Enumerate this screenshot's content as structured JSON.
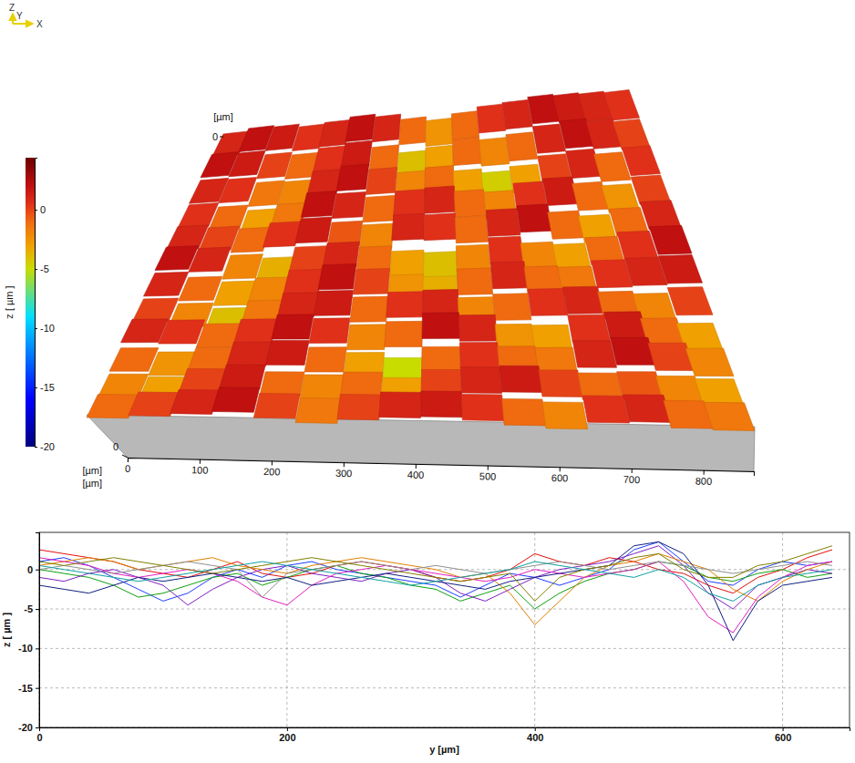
{
  "chart_data": [
    {
      "type": "surface",
      "triad": [
        "Z",
        "Y",
        "X"
      ],
      "x_label": "[µm]",
      "xlim": [
        0,
        870
      ],
      "xticks": [
        0,
        100,
        200,
        300,
        400,
        500,
        600,
        700,
        800
      ],
      "y_label": "[µm]",
      "ylim": [
        0,
        660
      ],
      "yticks": [
        0
      ],
      "z_label": "[µm]",
      "zticks": [
        0
      ],
      "cells": [
        [
          1,
          2,
          1.5,
          0.5,
          1,
          2,
          1,
          -1,
          -2.5,
          -1,
          0.5,
          1,
          2,
          1.5,
          1,
          0.5
        ],
        [
          2,
          1.5,
          0,
          -1,
          0.5,
          1.5,
          -1,
          -4,
          -3,
          -1,
          -2,
          -1,
          1,
          2,
          1,
          0
        ],
        [
          1,
          0.5,
          -1.5,
          -2,
          1,
          2,
          0,
          -2,
          -1,
          -3,
          -4.5,
          -3,
          0,
          1,
          -1,
          0.5
        ],
        [
          0.5,
          -1,
          -3,
          -1.5,
          2,
          1,
          -1,
          0.5,
          1,
          -1,
          -2,
          0.5,
          1.5,
          -1,
          -2.5,
          0
        ],
        [
          1,
          0,
          -1,
          0.5,
          1.5,
          -0.5,
          -2,
          1,
          0.5,
          -1,
          1,
          2,
          -1,
          -3,
          -1,
          1
        ],
        [
          2,
          1,
          -2,
          -3.5,
          0,
          1,
          -1,
          -3,
          -4,
          -2,
          0.5,
          -2,
          -3,
          -1,
          0.5,
          2
        ],
        [
          1,
          -1,
          -3,
          -2,
          0.5,
          2,
          0,
          -2.5,
          -3.5,
          -1,
          1,
          -1,
          -1.5,
          0.5,
          1,
          1.5
        ],
        [
          0,
          -2,
          -4,
          -1.5,
          1,
          1.5,
          -1,
          0.5,
          1,
          -2,
          -1,
          0.5,
          1,
          -1,
          -2,
          0
        ],
        [
          1,
          0.5,
          -1,
          0.5,
          2,
          0.5,
          -2,
          -1,
          2,
          1,
          -2.5,
          -3,
          0.5,
          1.5,
          -1,
          -3
        ],
        [
          -1,
          -2.5,
          -1,
          1,
          1.5,
          -1,
          -3,
          -5,
          -1,
          0.5,
          -1,
          -1.5,
          1,
          2,
          0,
          -2
        ],
        [
          -2,
          -3,
          0,
          1.5,
          -1,
          -2,
          -1,
          -3,
          0,
          1,
          1.5,
          0,
          -1,
          -0.5,
          -2,
          -3
        ],
        [
          -1,
          0,
          1,
          2,
          0,
          -1.5,
          0,
          1,
          1.5,
          0.5,
          -1,
          -2,
          0.5,
          1,
          -1,
          -1.5
        ]
      ],
      "colorbar": {
        "label": "z [ µm ]",
        "range": [
          -20,
          4.4
        ],
        "ticks": [
          0,
          -5,
          -10,
          -15,
          -20
        ]
      }
    },
    {
      "type": "line",
      "x_label": "y [µm]",
      "y_label": "z [ µm ]",
      "xlim": [
        0,
        654
      ],
      "xticks": [
        0,
        200,
        400,
        600
      ],
      "ylim": [
        -20,
        4.7
      ],
      "yticks": [
        0,
        -5,
        -10,
        -15,
        -20
      ],
      "grid": true,
      "x": [
        0,
        20,
        40,
        60,
        80,
        100,
        120,
        140,
        160,
        180,
        200,
        220,
        240,
        260,
        280,
        300,
        320,
        340,
        360,
        380,
        400,
        420,
        440,
        460,
        480,
        500,
        520,
        540,
        560,
        580,
        600,
        620,
        640
      ],
      "series": [
        {
          "color": "#1f3fff",
          "values": [
            1,
            1.5,
            0.5,
            -1,
            -2.5,
            -4,
            -3,
            -1,
            0,
            -1,
            0.5,
            1,
            0,
            -0.5,
            -1,
            -1.5,
            -2,
            -3.5,
            -2,
            -0.5,
            -1,
            -2,
            -1,
            0,
            2.5,
            3.5,
            1,
            -1.5,
            -2,
            0,
            1,
            0.5,
            1
          ]
        },
        {
          "color": "#e01010",
          "values": [
            2.5,
            2,
            1.5,
            1,
            0,
            -0.5,
            -1,
            0,
            1,
            -0.5,
            -1,
            -0.5,
            0.5,
            1,
            0.5,
            0,
            -1,
            -1.5,
            -1,
            0,
            2,
            1,
            0.5,
            1.5,
            1,
            0,
            -0.5,
            -2,
            -3,
            -1,
            0,
            1.5,
            2.5
          ]
        },
        {
          "color": "#10a010",
          "values": [
            0,
            -0.5,
            -1,
            -2,
            -3.5,
            -3,
            -2,
            -1,
            -0.5,
            -2,
            -1,
            0,
            0.5,
            -0.5,
            -1,
            -2,
            -2.5,
            -4,
            -3,
            -2,
            -5,
            -3,
            -1.5,
            -0.5,
            0,
            1,
            0.5,
            -1,
            -1.5,
            -0.5,
            0,
            -1,
            -0.5
          ]
        },
        {
          "color": "#8020c0",
          "values": [
            -1,
            -1.5,
            -0.5,
            0,
            -1,
            -2,
            -4.5,
            -2.5,
            -1,
            0,
            0.5,
            -0.5,
            -1,
            -1.5,
            -0.5,
            0,
            -1,
            -3,
            -4,
            -2.5,
            -1,
            0,
            0.5,
            1,
            2,
            3,
            0.5,
            -3,
            -5,
            -2,
            -1,
            0,
            -0.5
          ]
        },
        {
          "color": "#e08000",
          "values": [
            0.5,
            1,
            1.5,
            1,
            0,
            0.5,
            1,
            1.5,
            0.5,
            0,
            -0.5,
            0.5,
            1,
            1.5,
            1,
            0.5,
            0,
            -1,
            -0.5,
            -3,
            -7,
            -4,
            -1,
            0.5,
            1,
            2,
            1,
            0,
            -2.5,
            -4,
            -1.5,
            0,
            1
          ]
        },
        {
          "color": "#e020c0",
          "values": [
            1.5,
            1,
            0.5,
            -0.5,
            -1,
            -0.5,
            0,
            -0.5,
            -1.5,
            -3.5,
            -4.5,
            -2,
            -0.5,
            0,
            0.5,
            0,
            -0.5,
            -1,
            -1.5,
            -1,
            0,
            -0.5,
            -1,
            -0.5,
            0,
            1,
            -1.5,
            -6,
            -8,
            -3.5,
            -1,
            0.5,
            1
          ]
        },
        {
          "color": "#102080",
          "values": [
            -2,
            -2.5,
            -3,
            -2,
            -1,
            -1.5,
            -1,
            -0.5,
            -1,
            -1.5,
            -1,
            -2,
            -1.5,
            -1,
            -0.5,
            -1,
            -1.5,
            -2,
            -2.5,
            -1.5,
            -1,
            -0.5,
            0,
            0.5,
            3,
            3.5,
            2,
            -2,
            -9,
            -4,
            -2,
            -1.5,
            -1
          ]
        },
        {
          "color": "#909090",
          "values": [
            0,
            0.5,
            0,
            -0.5,
            0,
            0.5,
            1,
            0.5,
            0,
            -3.5,
            -0.5,
            0,
            0.5,
            1,
            0.5,
            0,
            0.5,
            0,
            -0.5,
            0,
            0.5,
            1,
            0.5,
            0,
            0.5,
            1,
            0.5,
            0,
            -0.5,
            0,
            0.5,
            1,
            0.5
          ]
        },
        {
          "color": "#808000",
          "values": [
            1,
            0.5,
            1,
            1.5,
            1,
            0.5,
            0,
            -0.5,
            0,
            0.5,
            1,
            1.5,
            1,
            0.5,
            0,
            -0.5,
            -1,
            -1.5,
            -1,
            -0.5,
            -4,
            -1,
            0,
            0.5,
            1.5,
            2,
            0,
            -1,
            -1,
            0.5,
            1,
            2,
            3
          ]
        },
        {
          "color": "#10a0a0",
          "values": [
            0.5,
            0,
            -0.5,
            -1,
            -1.5,
            -1,
            -0.5,
            0,
            0.5,
            1,
            0.5,
            0,
            -0.5,
            -1,
            -1.5,
            -2,
            -1.5,
            -1,
            -0.5,
            0,
            1,
            0.5,
            0,
            -0.5,
            -1,
            0,
            -1,
            -3,
            -4,
            -2,
            -1,
            -0.5,
            0
          ]
        }
      ]
    }
  ]
}
